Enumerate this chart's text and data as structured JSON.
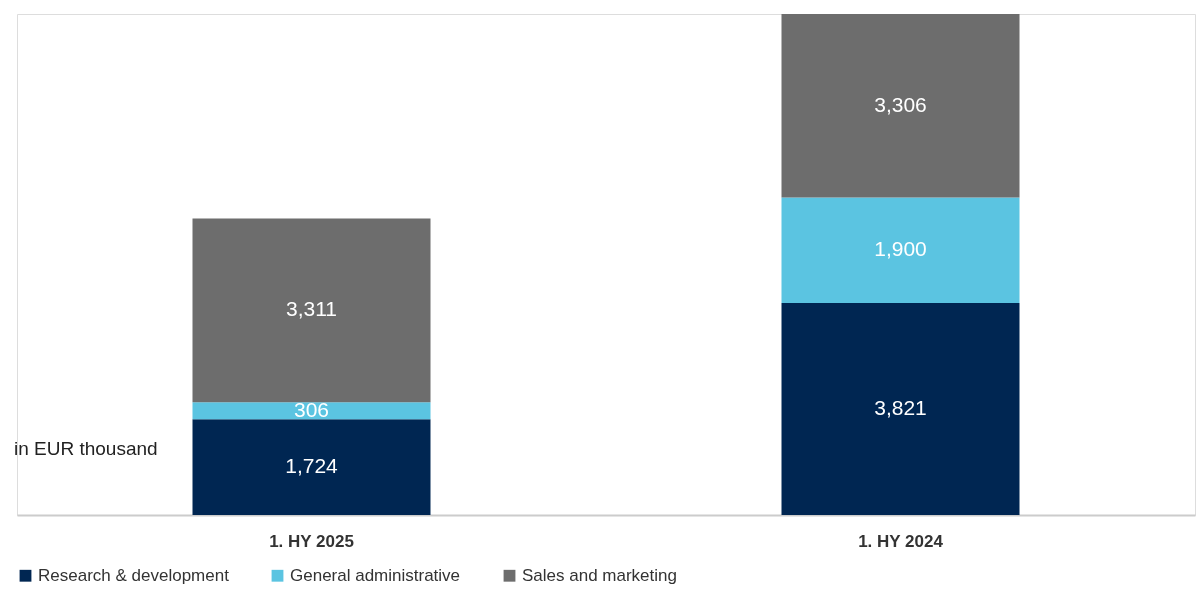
{
  "chart_data": {
    "type": "bar",
    "stacked": true,
    "legend": "bottom",
    "categories": [
      "1. HY 2025",
      "1. HY 2024"
    ],
    "series": [
      {
        "name": "Research & development",
        "color": "#002652",
        "values": [
          1724,
          3821
        ],
        "value_labels": [
          "1,724",
          "3,821"
        ]
      },
      {
        "name": "General administrative",
        "color": "#5bc4e1",
        "values": [
          306,
          1900
        ],
        "value_labels": [
          "306",
          "1,900"
        ]
      },
      {
        "name": "Sales and marketing",
        "color": "#6d6d6d",
        "values": [
          3311,
          3306
        ],
        "value_labels": [
          "3,311",
          "3,306"
        ]
      }
    ],
    "annotations": [
      "in EUR thousand"
    ]
  }
}
